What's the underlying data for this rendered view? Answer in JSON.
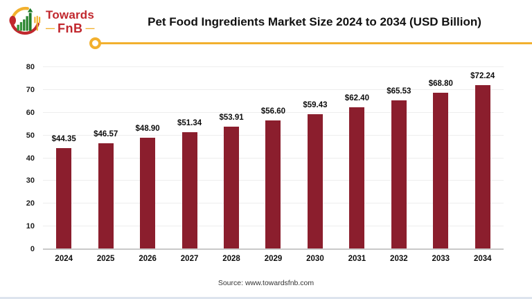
{
  "header": {
    "logo": {
      "towards": "Towards",
      "fnb": "FnB",
      "dash": "—"
    },
    "title": "Pet Food Ingredients Market Size 2024 to 2034 (USD Billion)"
  },
  "chart_data": {
    "type": "bar",
    "title": "Pet Food Ingredients Market Size 2024 to 2034 (USD Billion)",
    "categories": [
      "2024",
      "2025",
      "2026",
      "2027",
      "2028",
      "2029",
      "2030",
      "2031",
      "2032",
      "2033",
      "2034"
    ],
    "values": [
      44.35,
      46.57,
      48.9,
      51.34,
      53.91,
      56.6,
      59.43,
      62.4,
      65.53,
      68.8,
      72.24
    ],
    "value_labels": [
      "$44.35",
      "$46.57",
      "$48.90",
      "$51.34",
      "$53.91",
      "$56.60",
      "$59.43",
      "$62.40",
      "$65.53",
      "$68.80",
      "$72.24"
    ],
    "xlabel": "",
    "ylabel": "",
    "ylim": [
      0,
      80
    ],
    "yticks": [
      0,
      10,
      20,
      30,
      40,
      50,
      60,
      70,
      80
    ],
    "grid": "horizontal",
    "legend": "none",
    "bar_color": "#8b1e2d"
  },
  "footer": {
    "source": "Source: www.towardsfnb.com"
  },
  "colors": {
    "accent_yellow": "#f2b02e",
    "brand_red": "#c1272d",
    "logo_green": "#35923a",
    "bar": "#8b1e2d",
    "gridline": "#ededed",
    "baseline": "#c9c9c9"
  }
}
